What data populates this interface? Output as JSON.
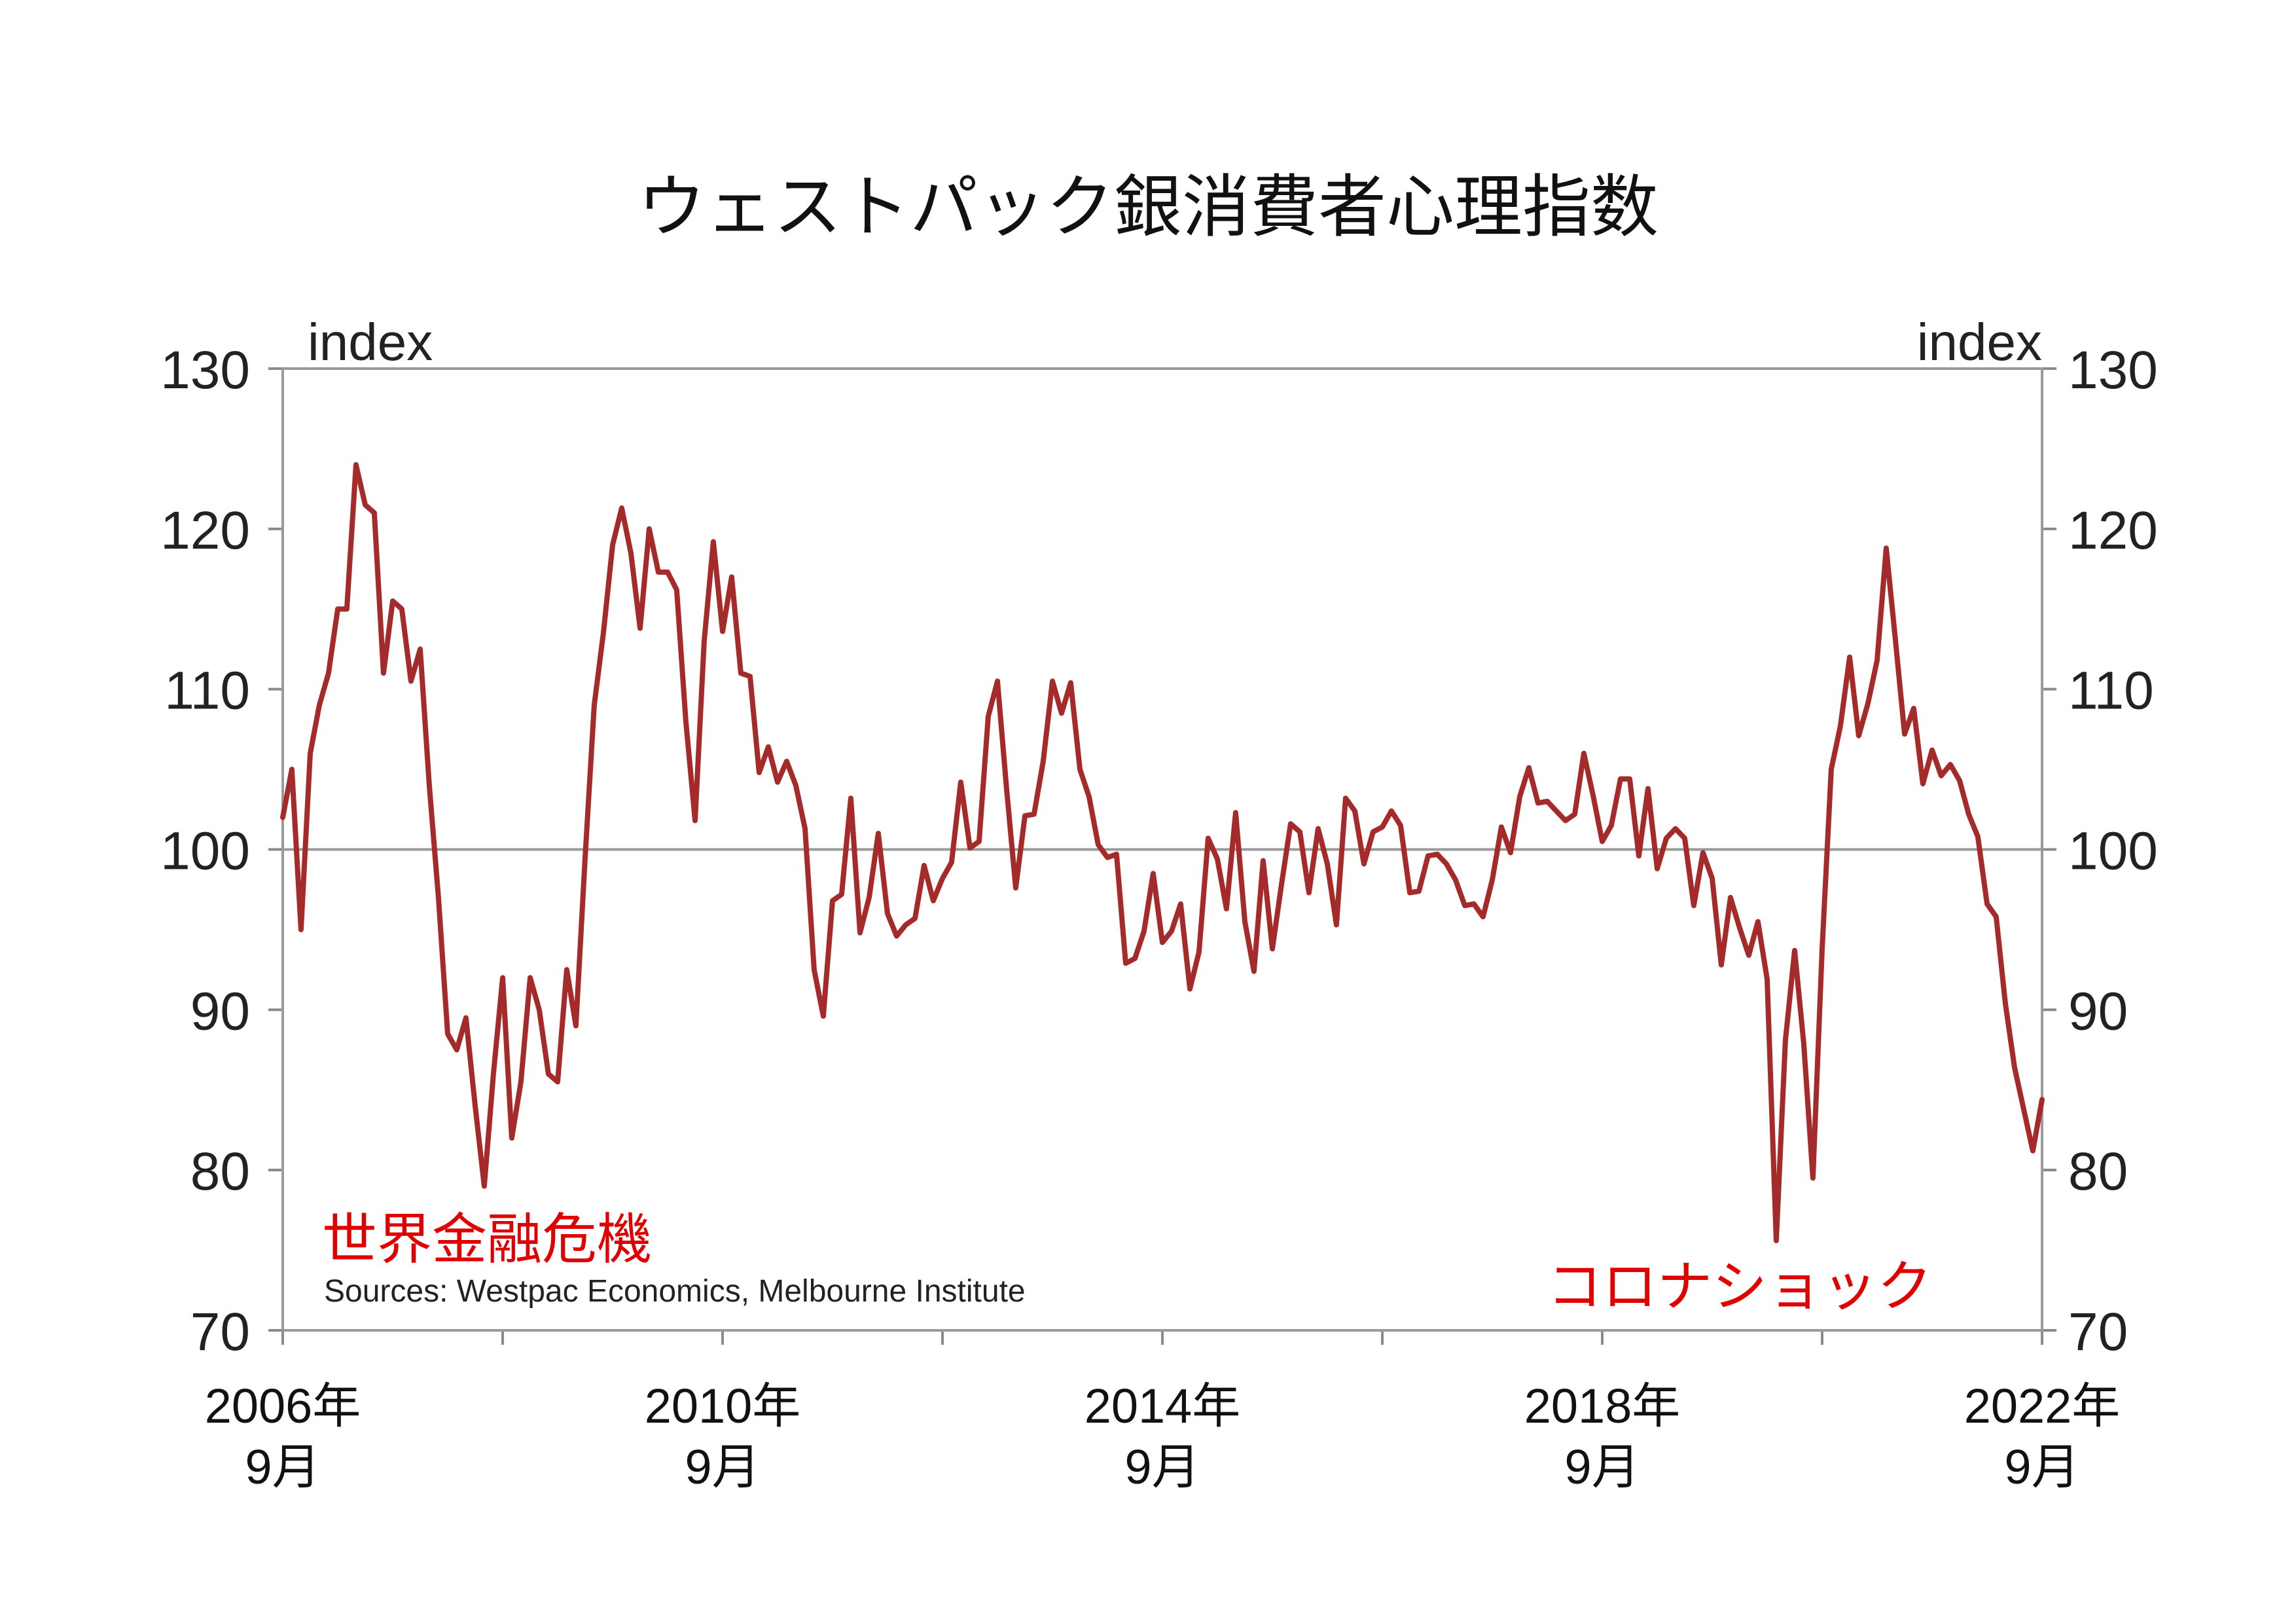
{
  "chart_data": {
    "type": "line",
    "title": "ウェストパック銀消費者心理指数",
    "ylabel_left": "index",
    "ylabel_right": "index",
    "ylim": [
      70,
      130
    ],
    "y_ticks": [
      130,
      120,
      110,
      100,
      90,
      80,
      70
    ],
    "reference_line": 100,
    "x_tick_labels": [
      {
        "year": "2006年",
        "month": "9月",
        "x": 2006.667
      },
      {
        "year": "2010年",
        "month": "9月",
        "x": 2010.667
      },
      {
        "year": "2014年",
        "month": "9月",
        "x": 2014.667
      },
      {
        "year": "2018年",
        "month": "9月",
        "x": 2018.667
      },
      {
        "year": "2022年",
        "month": "9月",
        "x": 2022.667
      }
    ],
    "xlim": [
      2006.667,
      2022.667
    ],
    "minor_x_ticks": [
      2008.667,
      2012.667,
      2016.667,
      2020.667
    ],
    "grid": false,
    "series": [
      {
        "color": "#a52a2a",
        "points": [
          [
            2006.667,
            102
          ],
          [
            2006.75,
            105
          ],
          [
            2006.833,
            95
          ],
          [
            2006.917,
            106
          ],
          [
            2007.0,
            109
          ],
          [
            2007.083,
            111
          ],
          [
            2007.167,
            115
          ],
          [
            2007.25,
            115
          ],
          [
            2007.333,
            124
          ],
          [
            2007.417,
            121.5
          ],
          [
            2007.5,
            121
          ],
          [
            2007.583,
            111
          ],
          [
            2007.667,
            115.5
          ],
          [
            2007.75,
            115
          ],
          [
            2007.833,
            110.5
          ],
          [
            2007.917,
            112.5
          ],
          [
            2008.0,
            104
          ],
          [
            2008.083,
            97
          ],
          [
            2008.167,
            88.5
          ],
          [
            2008.25,
            87.5
          ],
          [
            2008.333,
            89.5
          ],
          [
            2008.417,
            84
          ],
          [
            2008.5,
            79
          ],
          [
            2008.583,
            86
          ],
          [
            2008.667,
            92
          ],
          [
            2008.75,
            82
          ],
          [
            2008.833,
            85.5
          ],
          [
            2008.917,
            92
          ],
          [
            2009.0,
            90
          ],
          [
            2009.083,
            86
          ],
          [
            2009.167,
            85.5
          ],
          [
            2009.25,
            92.5
          ],
          [
            2009.333,
            89
          ],
          [
            2009.417,
            99.5
          ],
          [
            2009.5,
            109
          ],
          [
            2009.583,
            113.5
          ],
          [
            2009.667,
            119
          ],
          [
            2009.75,
            121.3
          ],
          [
            2009.833,
            118.5
          ],
          [
            2009.917,
            113.8
          ],
          [
            2010.0,
            120
          ],
          [
            2010.083,
            117.3
          ],
          [
            2010.167,
            117.3
          ],
          [
            2010.25,
            116.2
          ],
          [
            2010.333,
            108
          ],
          [
            2010.417,
            101.8
          ],
          [
            2010.5,
            113
          ],
          [
            2010.583,
            119.2
          ],
          [
            2010.667,
            113.6
          ],
          [
            2010.75,
            117
          ],
          [
            2010.833,
            111
          ],
          [
            2010.917,
            110.8
          ],
          [
            2011.0,
            104.8
          ],
          [
            2011.083,
            106.4
          ],
          [
            2011.167,
            104.2
          ],
          [
            2011.25,
            105.5
          ],
          [
            2011.333,
            104
          ],
          [
            2011.417,
            101.3
          ],
          [
            2011.5,
            92.5
          ],
          [
            2011.583,
            89.6
          ],
          [
            2011.667,
            96.8
          ],
          [
            2011.75,
            97.2
          ],
          [
            2011.833,
            103.2
          ],
          [
            2011.917,
            94.8
          ],
          [
            2012.0,
            97
          ],
          [
            2012.083,
            101
          ],
          [
            2012.167,
            96
          ],
          [
            2012.25,
            94.6
          ],
          [
            2012.333,
            95.3
          ],
          [
            2012.417,
            95.7
          ],
          [
            2012.5,
            99
          ],
          [
            2012.583,
            96.8
          ],
          [
            2012.667,
            98.2
          ],
          [
            2012.75,
            99.2
          ],
          [
            2012.833,
            104.2
          ],
          [
            2012.917,
            100.1
          ],
          [
            2013.0,
            100.5
          ],
          [
            2013.083,
            108.3
          ],
          [
            2013.167,
            110.5
          ],
          [
            2013.25,
            103.8
          ],
          [
            2013.333,
            97.6
          ],
          [
            2013.417,
            102.1
          ],
          [
            2013.5,
            102.2
          ],
          [
            2013.583,
            105.5
          ],
          [
            2013.667,
            110.5
          ],
          [
            2013.75,
            108.5
          ],
          [
            2013.833,
            110.4
          ],
          [
            2013.917,
            105
          ],
          [
            2014.0,
            103.3
          ],
          [
            2014.083,
            100.3
          ],
          [
            2014.167,
            99.5
          ],
          [
            2014.25,
            99.7
          ],
          [
            2014.333,
            92.9
          ],
          [
            2014.417,
            93.2
          ],
          [
            2014.5,
            94.9
          ],
          [
            2014.583,
            98.5
          ],
          [
            2014.667,
            94.2
          ],
          [
            2014.75,
            94.9
          ],
          [
            2014.833,
            96.6
          ],
          [
            2014.917,
            91.3
          ],
          [
            2015.0,
            93.6
          ],
          [
            2015.083,
            100.7
          ],
          [
            2015.167,
            99.4
          ],
          [
            2015.25,
            96.3
          ],
          [
            2015.333,
            102.3
          ],
          [
            2015.417,
            95.5
          ],
          [
            2015.5,
            92.4
          ],
          [
            2015.583,
            99.3
          ],
          [
            2015.667,
            93.8
          ],
          [
            2015.75,
            97.8
          ],
          [
            2015.833,
            101.6
          ],
          [
            2015.917,
            101.1
          ],
          [
            2016.0,
            97.3
          ],
          [
            2016.083,
            101.3
          ],
          [
            2016.167,
            99.1
          ],
          [
            2016.25,
            95.3
          ],
          [
            2016.333,
            103.2
          ],
          [
            2016.417,
            102.4
          ],
          [
            2016.5,
            99.1
          ],
          [
            2016.583,
            101.1
          ],
          [
            2016.667,
            101.4
          ],
          [
            2016.75,
            102.4
          ],
          [
            2016.833,
            101.5
          ],
          [
            2016.917,
            97.3
          ],
          [
            2017.0,
            97.4
          ],
          [
            2017.083,
            99.6
          ],
          [
            2017.167,
            99.7
          ],
          [
            2017.25,
            99.1
          ],
          [
            2017.333,
            98.1
          ],
          [
            2017.417,
            96.5
          ],
          [
            2017.5,
            96.6
          ],
          [
            2017.583,
            95.8
          ],
          [
            2017.667,
            98.1
          ],
          [
            2017.75,
            101.4
          ],
          [
            2017.833,
            99.8
          ],
          [
            2017.917,
            103.3
          ],
          [
            2018.0,
            105.1
          ],
          [
            2018.083,
            102.9
          ],
          [
            2018.167,
            103
          ],
          [
            2018.25,
            102.4
          ],
          [
            2018.333,
            101.8
          ],
          [
            2018.417,
            102.2
          ],
          [
            2018.5,
            106
          ],
          [
            2018.583,
            103.4
          ],
          [
            2018.667,
            100.5
          ],
          [
            2018.75,
            101.5
          ],
          [
            2018.833,
            104.4
          ],
          [
            2018.917,
            104.4
          ],
          [
            2019.0,
            99.6
          ],
          [
            2019.083,
            103.8
          ],
          [
            2019.167,
            98.8
          ],
          [
            2019.25,
            100.7
          ],
          [
            2019.333,
            101.3
          ],
          [
            2019.417,
            100.7
          ],
          [
            2019.5,
            96.5
          ],
          [
            2019.583,
            99.8
          ],
          [
            2019.667,
            98.2
          ],
          [
            2019.75,
            92.8
          ],
          [
            2019.833,
            97
          ],
          [
            2019.917,
            95.1
          ],
          [
            2020.0,
            93.4
          ],
          [
            2020.083,
            95.5
          ],
          [
            2020.167,
            91.9
          ],
          [
            2020.25,
            75.6
          ],
          [
            2020.333,
            88.1
          ],
          [
            2020.417,
            93.7
          ],
          [
            2020.5,
            87.9
          ],
          [
            2020.583,
            79.5
          ],
          [
            2020.667,
            93.8
          ],
          [
            2020.75,
            105
          ],
          [
            2020.833,
            107.7
          ],
          [
            2020.917,
            112
          ],
          [
            2021.0,
            107.1
          ],
          [
            2021.083,
            109.1
          ],
          [
            2021.167,
            111.8
          ],
          [
            2021.25,
            118.8
          ],
          [
            2021.333,
            113.1
          ],
          [
            2021.417,
            107.2
          ],
          [
            2021.5,
            108.8
          ],
          [
            2021.583,
            104.1
          ],
          [
            2021.667,
            106.2
          ],
          [
            2021.75,
            104.6
          ],
          [
            2021.833,
            105.3
          ],
          [
            2021.917,
            104.3
          ],
          [
            2022.0,
            102.2
          ],
          [
            2022.083,
            100.8
          ],
          [
            2022.167,
            96.6
          ],
          [
            2022.25,
            95.8
          ],
          [
            2022.333,
            90.4
          ],
          [
            2022.417,
            86.4
          ],
          [
            2022.5,
            83.8
          ],
          [
            2022.583,
            81.2
          ],
          [
            2022.667,
            84.4
          ]
        ]
      }
    ],
    "annotations": [
      {
        "text": "世界金融危機",
        "color": "#e00000"
      },
      {
        "text": "コロナショック",
        "color": "#e00000"
      }
    ],
    "source": "Sources: Westpac Economics, Melbourne Institute"
  }
}
